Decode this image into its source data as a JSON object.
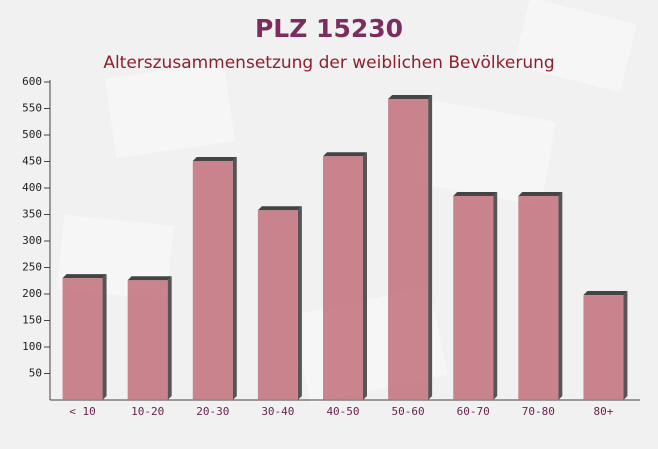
{
  "chart_data": {
    "type": "bar",
    "title": "PLZ 15230",
    "subtitle": "Alterszusammensetzung der weiblichen Bevölkerung",
    "categories": [
      "< 10",
      "10-20",
      "20-30",
      "30-40",
      "40-50",
      "50-60",
      "60-70",
      "70-80",
      "80+"
    ],
    "values": [
      230,
      226,
      451,
      358,
      460,
      568,
      385,
      385,
      198
    ],
    "color": "#c1707a",
    "ylim": [
      0,
      600
    ],
    "yticks": [
      50,
      100,
      150,
      200,
      250,
      300,
      350,
      400,
      450,
      500,
      550,
      600
    ],
    "grid": false
  }
}
